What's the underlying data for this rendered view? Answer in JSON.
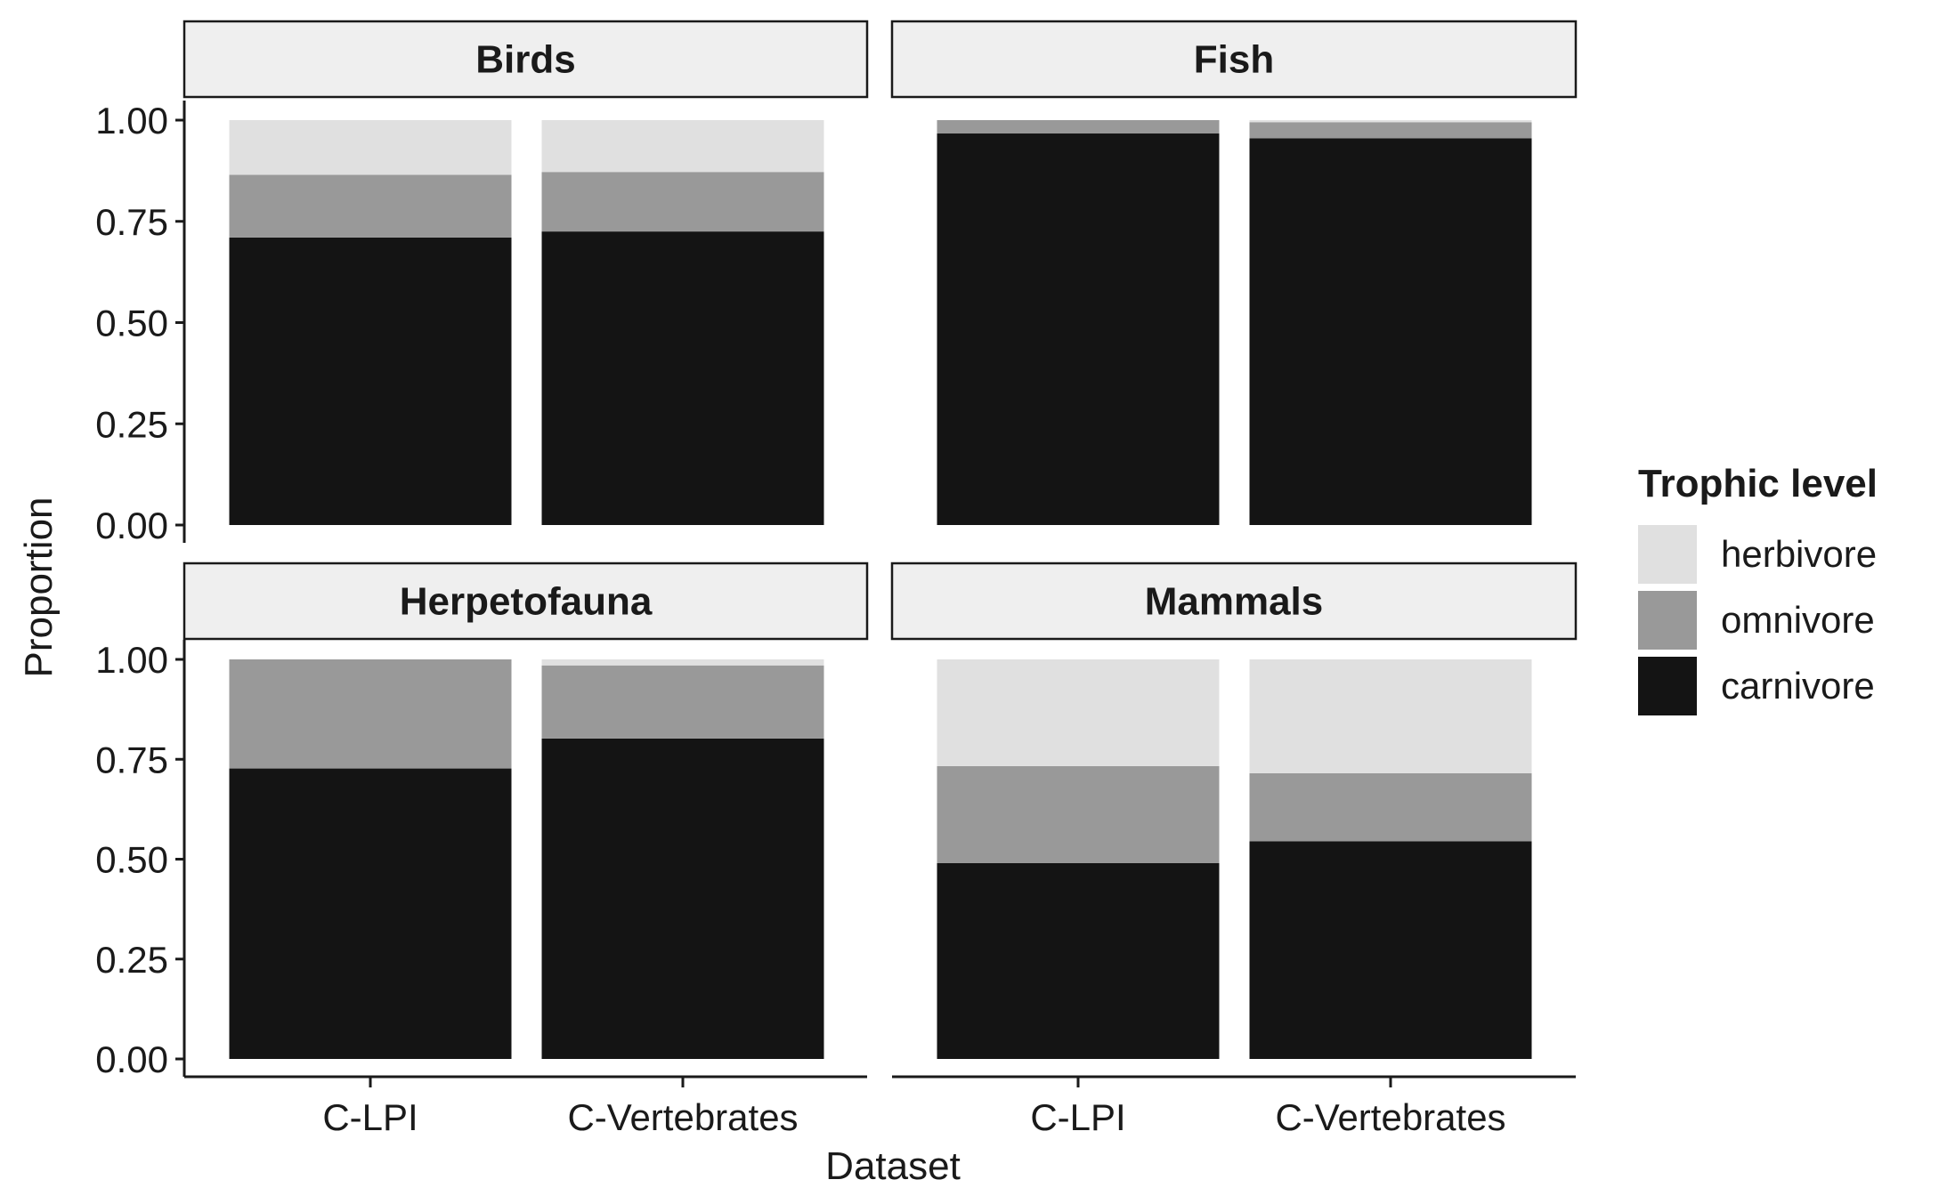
{
  "chart_data": {
    "type": "bar",
    "stacked": true,
    "facet_titles": [
      "Birds",
      "Fish",
      "Herpetofauna",
      "Mammals"
    ],
    "categories": [
      "C-LPI",
      "C-Vertebrates"
    ],
    "xlabel": "Dataset",
    "ylabel": "Proportion",
    "ylim": [
      0,
      1
    ],
    "yticks": [
      "0.00",
      "0.25",
      "0.50",
      "0.75",
      "1.00"
    ],
    "legend": {
      "title": "Trophic level",
      "position": "right",
      "entries": [
        "herbivore",
        "omnivore",
        "carnivore"
      ]
    },
    "colors": {
      "herbivore": "#e0e0e0",
      "omnivore": "#999999",
      "carnivore": "#141414",
      "strip_fill": "#efefef",
      "axis": "#1a1a1a"
    },
    "panels": [
      {
        "title": "Birds",
        "series": [
          {
            "name": "carnivore",
            "values": [
              0.71,
              0.725
            ]
          },
          {
            "name": "omnivore",
            "values": [
              0.155,
              0.147
            ]
          },
          {
            "name": "herbivore",
            "values": [
              0.135,
              0.128
            ]
          }
        ]
      },
      {
        "title": "Fish",
        "series": [
          {
            "name": "carnivore",
            "values": [
              0.967,
              0.955
            ]
          },
          {
            "name": "omnivore",
            "values": [
              0.033,
              0.04
            ]
          },
          {
            "name": "herbivore",
            "values": [
              0.0,
              0.005
            ]
          }
        ]
      },
      {
        "title": "Herpetofauna",
        "series": [
          {
            "name": "carnivore",
            "values": [
              0.727,
              0.802
            ]
          },
          {
            "name": "omnivore",
            "values": [
              0.273,
              0.183
            ]
          },
          {
            "name": "herbivore",
            "values": [
              0.0,
              0.015
            ]
          }
        ]
      },
      {
        "title": "Mammals",
        "series": [
          {
            "name": "carnivore",
            "values": [
              0.49,
              0.545
            ]
          },
          {
            "name": "omnivore",
            "values": [
              0.243,
              0.17
            ]
          },
          {
            "name": "herbivore",
            "values": [
              0.267,
              0.285
            ]
          }
        ]
      }
    ]
  }
}
